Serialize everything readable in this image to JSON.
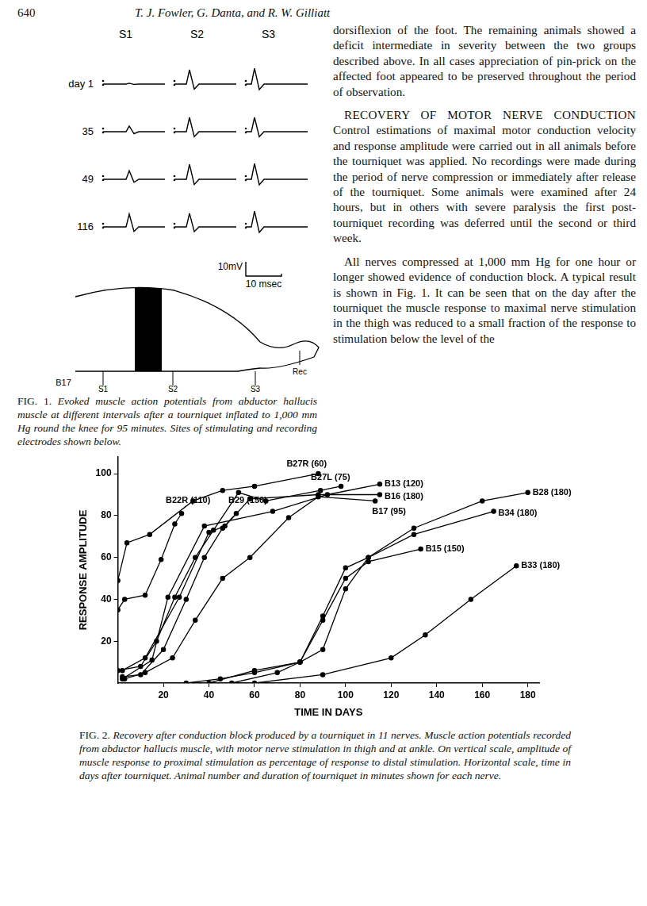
{
  "header": {
    "page": "640",
    "authors": "T. J. Fowler, G. Danta, and R. W. Gilliatt"
  },
  "figure1": {
    "columns": [
      "S1",
      "S2",
      "S3"
    ],
    "day_prefix": "day",
    "rows": [
      {
        "day": "1",
        "amplitudes_mV": [
          0.6,
          10,
          11
        ]
      },
      {
        "day": "35",
        "amplitudes_mV": [
          4,
          10,
          10
        ]
      },
      {
        "day": "49",
        "amplitudes_mV": [
          6,
          10.5,
          11
        ]
      },
      {
        "day": "116",
        "amplitudes_mV": [
          9,
          9.5,
          11
        ]
      }
    ],
    "scale_bar": {
      "voltage": 10,
      "voltage_label": "10mV",
      "time": 10,
      "time_label": "10 msec"
    },
    "diagram": {
      "animal": "B17",
      "sites": [
        "S1",
        "S2",
        "S3",
        "Rec"
      ]
    },
    "caption_label": "FIG. 1.",
    "caption": "Evoked muscle action potentials from abductor hallucis muscle at different intervals after a tourniquet inflated to 1,000 mm Hg round the knee for 95 minutes. Sites of stimulating and recording electrodes shown below."
  },
  "text": {
    "paragraphs": [
      {
        "heading": "",
        "body": "dorsiflexion of the foot. The remaining animals showed a deficit intermediate in severity between the two groups described above. In all cases appreciation of pin-prick on the affected foot appeared to be preserved throughout the period of observation."
      },
      {
        "heading": "RECOVERY OF MOTOR NERVE CONDUCTION",
        "body": "Control estimations of maximal motor conduction velocity and response amplitude were carried out in all animals before the tourniquet was applied. No recordings were made during the period of nerve compression or immediately after release of the tourniquet. Some animals were examined after 24 hours, but in others with severe paralysis the first post-tourniquet recording was deferred until the second or third week."
      },
      {
        "heading": "",
        "body": "All nerves compressed at 1,000 mm Hg for one hour or longer showed evidence of conduction block. A typical result is shown in Fig. 1. It can be seen that on the day after the tourniquet the muscle response to maximal nerve stimulation in the thigh was reduced to a small fraction of the response to stimulation below the level of the"
      }
    ]
  },
  "chart_data": {
    "type": "line",
    "x_label": "TIME IN DAYS",
    "y_label": "RESPONSE AMPLITUDE",
    "color": "#000000",
    "marker": "circle",
    "grid": false,
    "xlim": [
      0,
      185
    ],
    "xticks": [
      20,
      40,
      60,
      80,
      100,
      120,
      140,
      160,
      180
    ],
    "ylim": [
      0,
      108
    ],
    "yticks": [
      20,
      40,
      60,
      80,
      100
    ],
    "series": [
      {
        "name": "B27R (60)",
        "x": [
          0,
          4,
          14,
          33,
          46,
          60,
          88
        ],
        "values": [
          49,
          67,
          71,
          87,
          92,
          94,
          100
        ]
      },
      {
        "name": "B27L (75)",
        "x": [
          0,
          10,
          17,
          25,
          34,
          42,
          53,
          65,
          89,
          98
        ],
        "values": [
          6,
          8,
          20,
          41,
          60,
          73,
          91,
          87,
          92,
          94
        ]
      },
      {
        "name": "B13 (120)",
        "x": [
          2,
          15,
          22,
          38,
          68,
          92,
          115
        ],
        "values": [
          2,
          11,
          41,
          75,
          82,
          90,
          95
        ]
      },
      {
        "name": "B16 (180)",
        "x": [
          2,
          12,
          27,
          40,
          47,
          58,
          88,
          115
        ],
        "values": [
          6,
          12,
          41,
          72,
          75,
          88,
          90,
          90
        ]
      },
      {
        "name": "B22R (110)",
        "x": [
          0,
          3,
          12,
          19,
          25,
          28
        ],
        "values": [
          35,
          40,
          42,
          59,
          76,
          81
        ]
      },
      {
        "name": "B29 (150)",
        "x": [
          2,
          10,
          20,
          30,
          38,
          46,
          52
        ],
        "values": [
          3,
          4,
          16,
          40,
          60,
          74,
          81
        ]
      },
      {
        "name": "B17 (95)",
        "x": [
          3,
          12,
          24,
          34,
          46,
          58,
          75,
          88,
          113
        ],
        "values": [
          2,
          5,
          12,
          30,
          50,
          60,
          79,
          89,
          87
        ]
      },
      {
        "name": "B28 (180)",
        "x": [
          30,
          45,
          60,
          80,
          90,
          100,
          110,
          130,
          160,
          180
        ],
        "values": [
          0,
          2,
          5,
          10,
          32,
          55,
          60,
          74,
          87,
          91
        ]
      },
      {
        "name": "B34 (180)",
        "x": [
          40,
          60,
          80,
          90,
          100,
          110,
          130,
          165
        ],
        "values": [
          0,
          6,
          10,
          16,
          45,
          60,
          71,
          82
        ]
      },
      {
        "name": "B15 (150)",
        "x": [
          50,
          70,
          80,
          90,
          100,
          110,
          133
        ],
        "values": [
          0,
          5,
          10,
          30,
          50,
          58,
          64
        ]
      },
      {
        "name": "B33 (180)",
        "x": [
          60,
          90,
          120,
          135,
          155,
          175
        ],
        "values": [
          0,
          4,
          12,
          23,
          40,
          56
        ]
      }
    ],
    "caption_label": "FIG. 2.",
    "caption": "Recovery after conduction block produced by a tourniquet in 11 nerves. Muscle action potentials recorded from abductor hallucis muscle, with motor nerve stimulation in thigh and at ankle. On vertical scale, amplitude of muscle response to proximal stimulation as percentage of response to distal stimulation. Horizontal scale, time in days after tourniquet. Animal number and duration of tourniquet in minutes shown for each nerve."
  }
}
